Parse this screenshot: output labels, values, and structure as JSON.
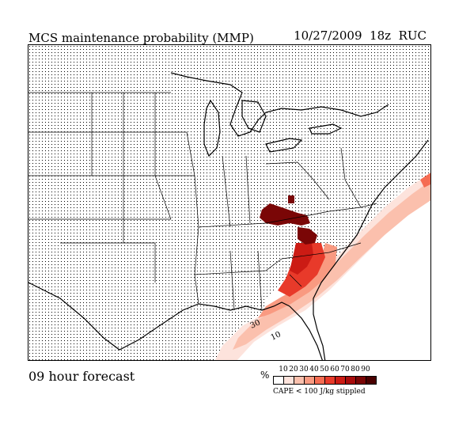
{
  "header": {
    "title": "MCS maintenance probability (MMP)",
    "run_info": "10/27/2009  18z  RUC"
  },
  "footer": {
    "forecast": "09 hour forecast",
    "unit": "%",
    "stipple_note": "CAPE < 100 J/kg stippled"
  },
  "legend": {
    "ticks": [
      "10",
      "20",
      "30",
      "40",
      "50",
      "60",
      "70",
      "80",
      "90"
    ],
    "colors": [
      "#ffffff",
      "#fde3dc",
      "#fbc0ad",
      "#f99a81",
      "#f56c52",
      "#e83a2a",
      "#cc1b14",
      "#a80c0c",
      "#7a0606",
      "#4a0000"
    ]
  },
  "map": {
    "contour_labels": [
      "30",
      "10"
    ],
    "stipple_color": "#000000"
  }
}
